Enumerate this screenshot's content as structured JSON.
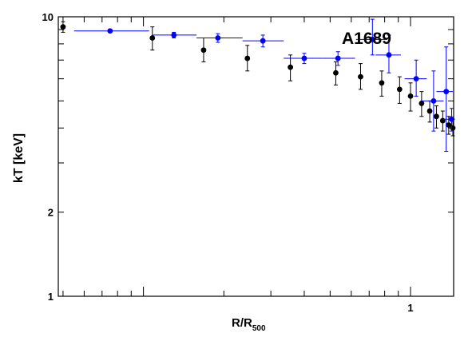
{
  "chart_data": {
    "type": "scatter",
    "title": "A1689",
    "xlabel": {
      "main": "R/R",
      "sub": "500"
    },
    "ylabel": "kT [keV]",
    "xscale": "log",
    "yscale": "log",
    "xlim": [
      0.048,
      1.45
    ],
    "ylim": [
      1,
      10
    ],
    "y_tick_labels": [
      {
        "value": 10,
        "label": "10"
      },
      {
        "value": 2,
        "label": "2"
      },
      {
        "value": 1,
        "label": "1"
      }
    ],
    "x_tick_labels": [
      {
        "value": 1,
        "label": "1"
      }
    ],
    "grid": false,
    "legend": "none",
    "series": [
      {
        "color": "#000000",
        "points": [
          {
            "x": 0.05,
            "y": 9.2,
            "ylo": 8.8,
            "yhi": 9.6
          },
          {
            "x": 0.108,
            "y": 8.4,
            "ylo": 7.6,
            "yhi": 9.2
          },
          {
            "x": 0.168,
            "y": 7.6,
            "ylo": 6.9,
            "yhi": 8.4
          },
          {
            "x": 0.245,
            "y": 7.1,
            "ylo": 6.4,
            "yhi": 7.9
          },
          {
            "x": 0.355,
            "y": 6.6,
            "ylo": 5.9,
            "yhi": 7.3
          },
          {
            "x": 0.525,
            "y": 6.3,
            "ylo": 5.7,
            "yhi": 6.9
          },
          {
            "x": 0.65,
            "y": 6.1,
            "ylo": 5.5,
            "yhi": 6.8
          },
          {
            "x": 0.78,
            "y": 5.8,
            "ylo": 5.2,
            "yhi": 6.4
          },
          {
            "x": 0.91,
            "y": 5.5,
            "ylo": 4.9,
            "yhi": 6.1
          },
          {
            "x": 1.0,
            "y": 5.2,
            "ylo": 4.6,
            "yhi": 5.8
          },
          {
            "x": 1.1,
            "y": 4.9,
            "ylo": 4.4,
            "yhi": 5.4
          },
          {
            "x": 1.18,
            "y": 4.6,
            "ylo": 4.2,
            "yhi": 5.0
          },
          {
            "x": 1.25,
            "y": 4.4,
            "ylo": 4.0,
            "yhi": 4.8
          },
          {
            "x": 1.32,
            "y": 4.25,
            "ylo": 3.9,
            "yhi": 4.6
          },
          {
            "x": 1.39,
            "y": 4.1,
            "ylo": 3.8,
            "yhi": 4.4
          },
          {
            "x": 1.44,
            "y": 4.0,
            "ylo": 3.75,
            "yhi": 4.3
          }
        ]
      },
      {
        "color": "#0000ff",
        "points": [
          {
            "x": 0.075,
            "y": 8.9,
            "xlo": 0.055,
            "xhi": 0.105,
            "ylo": 8.8,
            "yhi": 9.0
          },
          {
            "x": 0.13,
            "y": 8.6,
            "xlo": 0.108,
            "xhi": 0.158,
            "ylo": 8.4,
            "yhi": 8.8
          },
          {
            "x": 0.19,
            "y": 8.4,
            "xlo": 0.158,
            "xhi": 0.235,
            "ylo": 8.1,
            "yhi": 8.7
          },
          {
            "x": 0.28,
            "y": 8.2,
            "xlo": 0.235,
            "xhi": 0.335,
            "ylo": 7.8,
            "yhi": 8.6
          },
          {
            "x": 0.4,
            "y": 7.1,
            "xlo": 0.335,
            "xhi": 0.47,
            "ylo": 6.8,
            "yhi": 7.4
          },
          {
            "x": 0.535,
            "y": 7.1,
            "xlo": 0.47,
            "xhi": 0.62,
            "ylo": 6.7,
            "yhi": 7.5
          },
          {
            "x": 0.72,
            "y": 8.3,
            "xlo": 0.625,
            "xhi": 0.82,
            "ylo": 7.3,
            "yhi": 9.8
          },
          {
            "x": 0.83,
            "y": 7.3,
            "xlo": 0.74,
            "xhi": 0.92,
            "ylo": 6.3,
            "yhi": 8.6
          },
          {
            "x": 1.05,
            "y": 6.0,
            "xlo": 0.95,
            "xhi": 1.15,
            "ylo": 5.2,
            "yhi": 7.0
          },
          {
            "x": 1.22,
            "y": 5.0,
            "xlo": 1.1,
            "xhi": 1.33,
            "ylo": 3.9,
            "yhi": 6.4
          },
          {
            "x": 1.36,
            "y": 5.4,
            "xlo": 1.25,
            "xhi": 1.44,
            "ylo": 3.3,
            "yhi": 7.8
          },
          {
            "x": 1.425,
            "y": 4.3,
            "xlo": 1.32,
            "xhi": 1.45,
            "ylo": 3.9,
            "yhi": 4.7
          }
        ]
      }
    ]
  }
}
